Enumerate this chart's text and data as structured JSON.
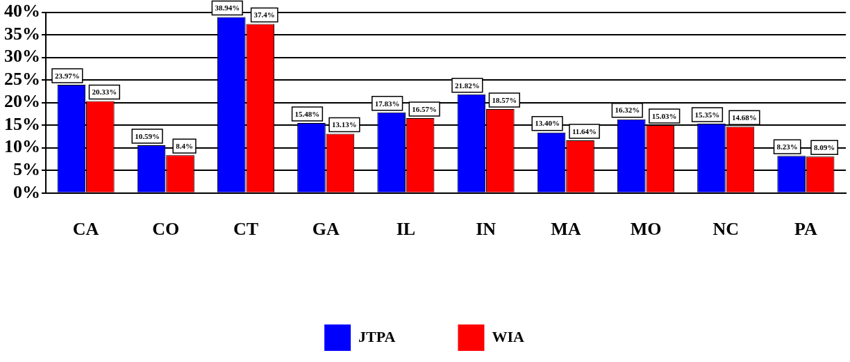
{
  "chart_data": {
    "type": "bar",
    "categories": [
      "CA",
      "CO",
      "CT",
      "GA",
      "IL",
      "IN",
      "MA",
      "MO",
      "NC",
      "PA"
    ],
    "series": [
      {
        "name": "JTPA",
        "color": "#0000ff",
        "values": [
          23.97,
          10.59,
          38.94,
          15.48,
          17.83,
          21.82,
          13.4,
          16.32,
          15.35,
          8.23
        ],
        "value_labels": [
          "23.97%",
          "10.59%",
          "38.94%",
          "15.48%",
          "17.83%",
          "21.82%",
          "13.40%",
          "16.32%",
          "15.35%",
          "8.23%"
        ]
      },
      {
        "name": "WIA",
        "color": "#ff0000",
        "values": [
          20.33,
          8.4,
          37.4,
          13.13,
          16.57,
          18.57,
          11.64,
          15.03,
          14.68,
          8.09
        ],
        "value_labels": [
          "20.33%",
          "8.4%",
          "37.4%",
          "13.13%",
          "16.57%",
          "18.57%",
          "11.64%",
          "15.03%",
          "14.68%",
          "8.09%"
        ]
      }
    ],
    "ylim": [
      0,
      40
    ],
    "yticks": [
      {
        "value": 0,
        "label": "0%"
      },
      {
        "value": 5,
        "label": "5%"
      },
      {
        "value": 10,
        "label": "10%"
      },
      {
        "value": 15,
        "label": "15%"
      },
      {
        "value": 20,
        "label": "20%"
      },
      {
        "value": 25,
        "label": "25%"
      },
      {
        "value": 30,
        "label": "30%"
      },
      {
        "value": 35,
        "label": "35%"
      },
      {
        "value": 40,
        "label": "40%"
      }
    ],
    "grid": "y",
    "legend": "bottom"
  }
}
